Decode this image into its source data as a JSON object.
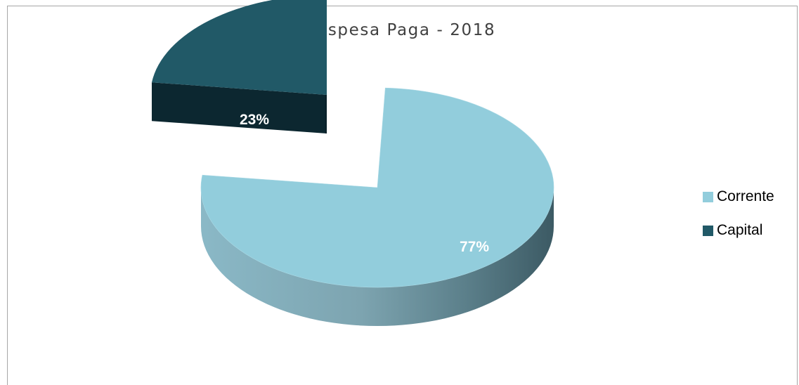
{
  "chart_data": {
    "type": "pie",
    "title": "Despesa Paga - 2018",
    "categories": [
      "Corrente",
      "Capital"
    ],
    "values": [
      77,
      23
    ],
    "labels": [
      "77%",
      "23%"
    ],
    "exploded": [
      "Capital"
    ],
    "legend_position": "right",
    "colors": {
      "Corrente": {
        "top": "#92cddc",
        "side_light": "#8ab8c6",
        "side_dark": "#3c5a64"
      },
      "Capital": {
        "top": "#215967",
        "side": "#0c2730"
      }
    }
  }
}
